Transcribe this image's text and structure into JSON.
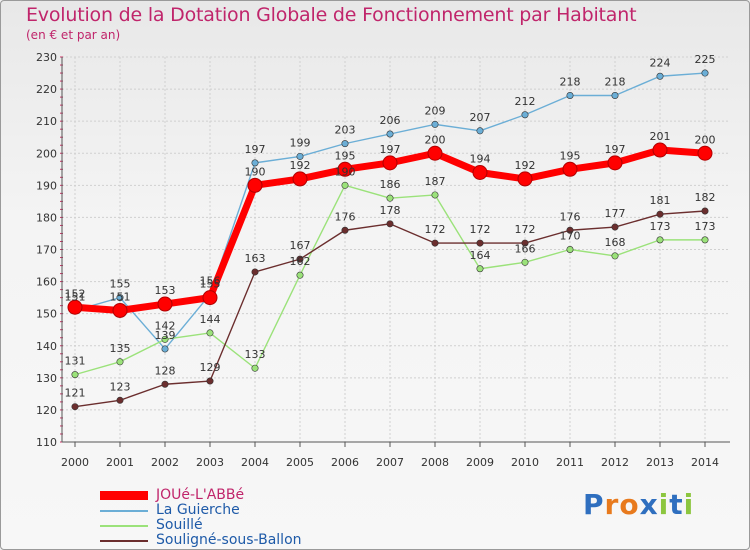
{
  "chart_data": {
    "type": "line",
    "title": "Evolution de la Dotation Globale de Fonctionnement par Habitant",
    "subtitle": "(en € et par an)",
    "xlabel": "",
    "ylabel": "",
    "ylim": [
      110,
      230
    ],
    "yticks": [
      110,
      120,
      130,
      140,
      150,
      160,
      170,
      180,
      190,
      200,
      210,
      220,
      230
    ],
    "categories": [
      "2000",
      "2001",
      "2002",
      "2003",
      "2004",
      "2005",
      "2006",
      "2007",
      "2008",
      "2009",
      "2010",
      "2011",
      "2012",
      "2013",
      "2014"
    ],
    "series": [
      {
        "name": "JOUé-L'ABBé",
        "color": "#ff0000",
        "values": [
          152,
          151,
          153,
          155,
          190,
          192,
          195,
          197,
          200,
          194,
          192,
          195,
          197,
          201,
          200
        ]
      },
      {
        "name": "La Guierche",
        "color": "#6baed6",
        "values": [
          151,
          155,
          139,
          156,
          197,
          199,
          203,
          206,
          209,
          207,
          212,
          218,
          218,
          224,
          225
        ]
      },
      {
        "name": "Souillé",
        "color": "#9be27a",
        "values": [
          131,
          135,
          142,
          144,
          133,
          162,
          190,
          186,
          187,
          164,
          166,
          170,
          168,
          173,
          173
        ]
      },
      {
        "name": "Souligné-sous-Ballon",
        "color": "#6b2e2e",
        "values": [
          121,
          123,
          128,
          129,
          163,
          167,
          176,
          178,
          172,
          172,
          172,
          176,
          177,
          181,
          182
        ]
      }
    ],
    "legend_position": "bottom-left",
    "grid": true
  },
  "brand": {
    "letters": [
      "P",
      "r",
      "o",
      "x",
      "i",
      "t",
      "i"
    ],
    "colors": [
      "#2f6fbf",
      "#e87a1d",
      "#e87a1d",
      "#2f6fbf",
      "#8cc63f",
      "#2f6fbf",
      "#8cc63f"
    ]
  }
}
